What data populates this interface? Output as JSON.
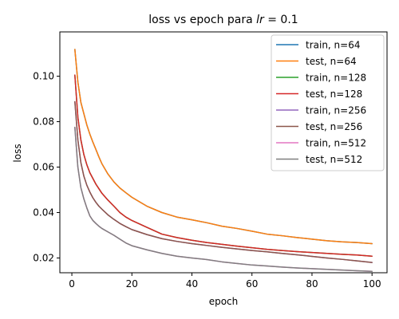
{
  "chart_data": {
    "type": "line",
    "title": "loss vs epoch para lr = 0.1",
    "title_prefix": "loss vs epoch para ",
    "title_math": "lr",
    "title_suffix": " = 0.1",
    "xlabel": "epoch",
    "ylabel": "loss",
    "xlim": [
      -4,
      105
    ],
    "ylim": [
      0.0135,
      0.1195
    ],
    "xticks": [
      0,
      20,
      40,
      60,
      80,
      100
    ],
    "yticks": [
      0.02,
      0.04,
      0.06,
      0.08,
      0.1
    ],
    "ytick_labels": [
      "0.02",
      "0.04",
      "0.06",
      "0.08",
      "0.10"
    ],
    "grid": false,
    "legend": "top-right",
    "x": [
      1,
      2,
      3,
      4,
      5,
      6,
      7,
      8,
      9,
      10,
      12,
      14,
      16,
      18,
      20,
      25,
      30,
      35,
      40,
      45,
      50,
      55,
      60,
      65,
      70,
      75,
      80,
      85,
      90,
      95,
      100
    ],
    "series": [
      {
        "name": "train, n=64",
        "color": "#1f77b4",
        "values": [
          0.1118,
          0.0975,
          0.0885,
          0.0835,
          0.0785,
          0.0745,
          0.071,
          0.0678,
          0.0645,
          0.0615,
          0.057,
          0.0535,
          0.0508,
          0.0487,
          0.0467,
          0.0428,
          0.04,
          0.038,
          0.0368,
          0.0355,
          0.034,
          0.033,
          0.0318,
          0.0305,
          0.0298,
          0.029,
          0.0283,
          0.0276,
          0.0271,
          0.0268,
          0.0263
        ]
      },
      {
        "name": "test, n=64",
        "color": "#ff7f0e",
        "values": [
          0.1118,
          0.0975,
          0.0885,
          0.0835,
          0.0785,
          0.0745,
          0.071,
          0.0678,
          0.0645,
          0.0615,
          0.057,
          0.0535,
          0.0508,
          0.0487,
          0.0467,
          0.0428,
          0.04,
          0.038,
          0.0368,
          0.0355,
          0.034,
          0.033,
          0.0318,
          0.0305,
          0.0298,
          0.029,
          0.0283,
          0.0276,
          0.0271,
          0.0268,
          0.0263
        ]
      },
      {
        "name": "train, n=128",
        "color": "#2ca02c",
        "values": [
          0.1005,
          0.082,
          0.072,
          0.0655,
          0.061,
          0.0575,
          0.055,
          0.0525,
          0.0505,
          0.0485,
          0.0455,
          0.0428,
          0.04,
          0.038,
          0.0365,
          0.0335,
          0.0305,
          0.029,
          0.0278,
          0.0268,
          0.026,
          0.0252,
          0.0245,
          0.0238,
          0.0233,
          0.0228,
          0.0224,
          0.022,
          0.0216,
          0.0213,
          0.0208
        ]
      },
      {
        "name": "test, n=128",
        "color": "#d62728",
        "values": [
          0.1005,
          0.082,
          0.072,
          0.0655,
          0.061,
          0.0575,
          0.055,
          0.0525,
          0.0505,
          0.0485,
          0.0455,
          0.0428,
          0.04,
          0.038,
          0.0365,
          0.0335,
          0.0305,
          0.029,
          0.0278,
          0.0268,
          0.026,
          0.0252,
          0.0245,
          0.0238,
          0.0233,
          0.0228,
          0.0224,
          0.022,
          0.0216,
          0.0213,
          0.0208
        ]
      },
      {
        "name": "train, n=256",
        "color": "#9467bd",
        "values": [
          0.0888,
          0.072,
          0.062,
          0.056,
          0.052,
          0.049,
          0.0465,
          0.0445,
          0.0428,
          0.0415,
          0.039,
          0.037,
          0.0352,
          0.0338,
          0.0325,
          0.0303,
          0.0285,
          0.0273,
          0.0263,
          0.0255,
          0.0247,
          0.024,
          0.0233,
          0.0227,
          0.022,
          0.0214,
          0.0207,
          0.02,
          0.0194,
          0.0187,
          0.018
        ]
      },
      {
        "name": "test, n=256",
        "color": "#8c564b",
        "values": [
          0.0888,
          0.072,
          0.062,
          0.056,
          0.052,
          0.049,
          0.0465,
          0.0445,
          0.0428,
          0.0415,
          0.039,
          0.037,
          0.0352,
          0.0338,
          0.0325,
          0.0303,
          0.0285,
          0.0273,
          0.0263,
          0.0255,
          0.0247,
          0.024,
          0.0233,
          0.0227,
          0.022,
          0.0214,
          0.0207,
          0.02,
          0.0194,
          0.0187,
          0.018
        ]
      },
      {
        "name": "train, n=512",
        "color": "#e377c2",
        "values": [
          0.0775,
          0.06,
          0.051,
          0.046,
          0.042,
          0.0385,
          0.0365,
          0.0352,
          0.034,
          0.033,
          0.0315,
          0.03,
          0.0283,
          0.0266,
          0.0254,
          0.0236,
          0.022,
          0.0208,
          0.02,
          0.0193,
          0.0183,
          0.0176,
          0.0169,
          0.0165,
          0.016,
          0.0156,
          0.0153,
          0.015,
          0.0147,
          0.0144,
          0.0141
        ]
      },
      {
        "name": "test, n=512",
        "color": "#7f7f7f",
        "values": [
          0.0775,
          0.06,
          0.051,
          0.046,
          0.042,
          0.0385,
          0.0365,
          0.0352,
          0.034,
          0.033,
          0.0315,
          0.03,
          0.0283,
          0.0266,
          0.0254,
          0.0236,
          0.022,
          0.0208,
          0.02,
          0.0193,
          0.0183,
          0.0176,
          0.0169,
          0.0165,
          0.016,
          0.0156,
          0.0153,
          0.015,
          0.0147,
          0.0144,
          0.0141
        ]
      }
    ]
  }
}
